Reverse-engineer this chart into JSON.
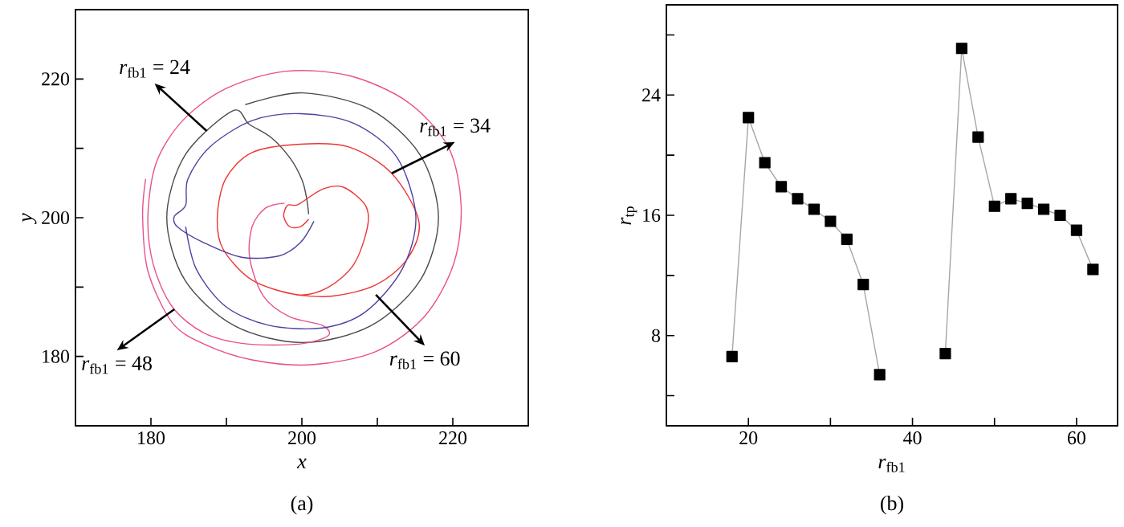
{
  "chart_data": [
    {
      "type": "line",
      "xlabel": "x",
      "ylabel": "y",
      "xlim": [
        170,
        230
      ],
      "ylim": [
        170,
        230
      ],
      "xticks": [
        180,
        {
          "value": 190,
          "label": null
        },
        200,
        {
          "value": 210,
          "label": null
        },
        220
      ],
      "yticks": [
        180,
        {
          "value": 190,
          "label": null
        },
        200,
        {
          "value": 210,
          "label": null
        },
        220
      ],
      "grid": false,
      "marker": "none",
      "line_style": "solid",
      "series": [
        {
          "color": "#4a4a4a",
          "x": [
            200.9,
            200.6,
            200,
            198.5,
            196,
            193,
            190.8,
            184.5,
            182.1,
            184.5,
            191.1,
            200.1,
            209.1,
            215.7,
            218.1,
            215.7,
            209.1,
            200.1,
            192.5
          ],
          "values": [
            200.5,
            203,
            205.5,
            208.5,
            211.5,
            213.5,
            215.4,
            209,
            200,
            191,
            184.4,
            182,
            184.4,
            191,
            200,
            209,
            215.6,
            218,
            216.3
          ]
        },
        {
          "color": "#ee3333",
          "x": [
            200.9,
            199.8,
            198.4,
            197.6,
            198.1,
            199.5,
            202.7,
            205.5,
            208.4,
            208.7,
            206.9,
            203.4,
            199.5,
            193.4,
            189.5,
            188.8,
            189.9,
            193.4,
            199.8,
            206.2,
            211.9,
            215.5,
            214,
            209.8,
            204.1,
            199.1
          ],
          "values": [
            199.8,
            198.7,
            198.7,
            200.2,
            201.8,
            201.9,
            204.1,
            204.4,
            201.8,
            198.7,
            193.3,
            189.9,
            188.9,
            191,
            195.6,
            200.2,
            205.6,
            209.4,
            210.6,
            210.2,
            206.4,
            199.5,
            194.1,
            190.3,
            188.7,
            188.9
          ]
        },
        {
          "color": "#e8508f",
          "x": [
            197.7,
            195.2,
            193.4,
            193.1,
            194.9,
            198.4,
            202.7,
            203.5,
            199.8,
            192.7,
            187,
            182.8,
            180.3,
            179.6,
            180.7,
            184.2,
            189.9,
            197.7,
            206.2,
            214,
            219.4,
            221.1,
            220.1,
            216.2,
            209.8,
            201.3,
            193.4,
            187,
            182.8,
            179.6,
            178.9,
            179.3
          ],
          "values": [
            202.1,
            201.4,
            198.7,
            194.1,
            188.7,
            185.7,
            184.5,
            183,
            181.8,
            181.8,
            183.4,
            187.2,
            193.3,
            200.2,
            207.9,
            214,
            218.6,
            221.1,
            220.5,
            216.7,
            210.2,
            201.8,
            193.3,
            185.7,
            180.7,
            178.8,
            179.5,
            181.8,
            184.9,
            192.3,
            200.2,
            205.6
          ]
        },
        {
          "color": "#5040a0",
          "x": [
            201.6,
            199.8,
            197,
            192,
            187,
            183.5,
            183.1,
            184.6,
            184.9,
            187.8,
            193.4,
            199.8,
            206.9,
            212.6,
            215.1,
            213.3,
            208.4,
            202.7,
            195.6,
            189.9,
            186,
            184.6
          ],
          "values": [
            199.5,
            196.4,
            194.5,
            194.3,
            196.4,
            198.7,
            200.2,
            201.8,
            205.6,
            210.2,
            214,
            215,
            213.6,
            208.7,
            200.2,
            192.6,
            186.4,
            184.1,
            184.5,
            187.2,
            192.6,
            198.7
          ]
        }
      ],
      "annotations": [
        {
          "text": "*r*$_{fb1}$ = 24",
          "x": 187.4,
          "y": 212.5
        },
        {
          "text": "*r*$_{fb1}$ = 34",
          "x": 211.9,
          "y": 206.4
        },
        {
          "text": "*r*$_{fb1}$ = 48",
          "x": 183.1,
          "y": 186.8
        },
        {
          "text": "*r*$_{fb1}$ = 60",
          "x": 209.8,
          "y": 188.9
        },
        "(a)"
      ]
    },
    {
      "type": "line",
      "xlabel": "*r*$_{fb1}$",
      "ylabel": "*r*$_{tp}$",
      "xlim": [
        10,
        65
      ],
      "ylim": [
        2,
        30
      ],
      "xticks": [
        20,
        {
          "value": 30,
          "label": null
        },
        40,
        {
          "value": 50,
          "label": null
        },
        60
      ],
      "yticks": [
        {
          "value": 4,
          "label": null
        },
        8,
        {
          "value": 12,
          "label": null
        },
        16,
        {
          "value": 20,
          "label": null
        },
        24,
        {
          "value": 28,
          "label": null
        }
      ],
      "grid": false,
      "marker": "square",
      "line_style": "solid",
      "series": [
        {
          "color": "#000000",
          "x": [
            18,
            20,
            22,
            24,
            26,
            28,
            30,
            32,
            34,
            36
          ],
          "values": [
            6.6,
            22.5,
            19.5,
            17.9,
            17.1,
            16.4,
            15.6,
            14.4,
            11.4,
            5.4
          ]
        },
        {
          "color": "#000000",
          "x": [
            44,
            46,
            48,
            50,
            52,
            54,
            56,
            58,
            60,
            62
          ],
          "values": [
            6.8,
            27.1,
            21.2,
            16.6,
            17.1,
            16.8,
            16.4,
            16.0,
            15.0,
            12.4
          ]
        }
      ],
      "annotations": [
        "(b)"
      ]
    }
  ]
}
